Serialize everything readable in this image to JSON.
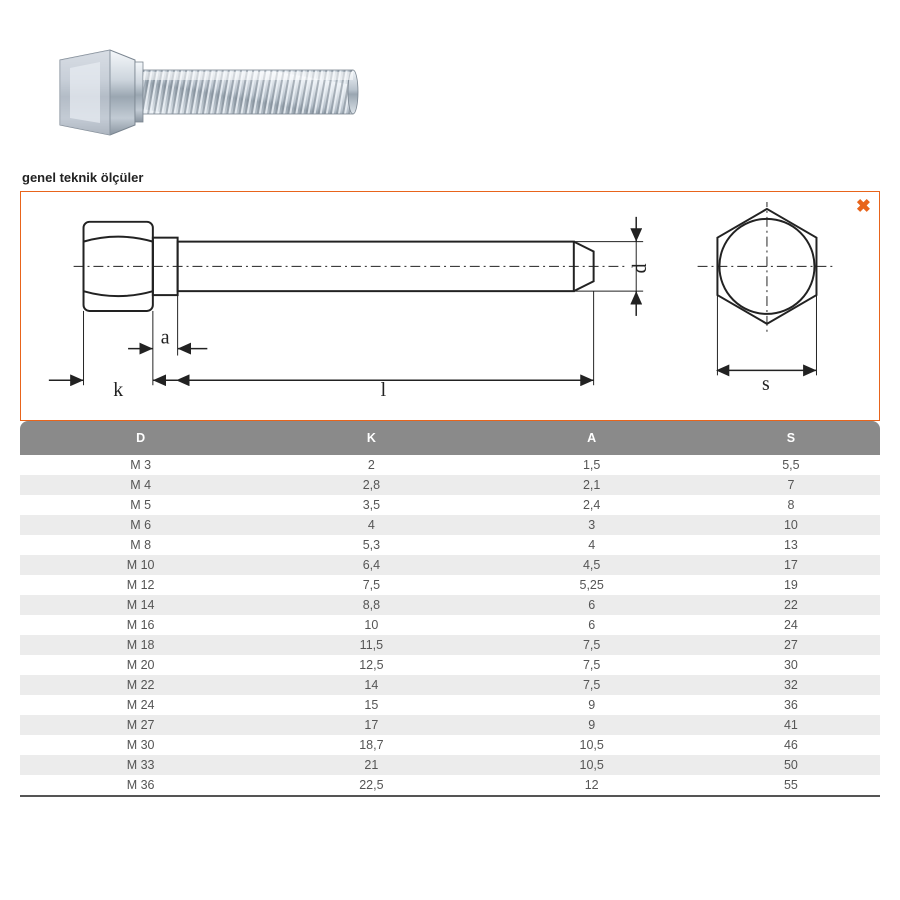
{
  "title": "genel teknik ölçüler",
  "close_symbol": "✖",
  "diagram": {
    "labels": {
      "a": "a",
      "k": "k",
      "l": "l",
      "s": "s",
      "d": "d"
    },
    "stroke": "#222222",
    "frame_color": "#e8641b"
  },
  "photo": {
    "metal_light": "#e0e5ea",
    "metal_mid": "#aeb8c2",
    "metal_dark": "#7a8590",
    "highlight": "#f5f8fb"
  },
  "table": {
    "header_bg": "#8a8a8a",
    "header_fg": "#ffffff",
    "row_odd_bg": "#ffffff",
    "row_even_bg": "#ececec",
    "text_color": "#555555",
    "columns": [
      "D",
      "K",
      "A",
      "S"
    ],
    "rows": [
      [
        "M 3",
        "2",
        "1,5",
        "5,5"
      ],
      [
        "M 4",
        "2,8",
        "2,1",
        "7"
      ],
      [
        "M 5",
        "3,5",
        "2,4",
        "8"
      ],
      [
        "M 6",
        "4",
        "3",
        "10"
      ],
      [
        "M 8",
        "5,3",
        "4",
        "13"
      ],
      [
        "M 10",
        "6,4",
        "4,5",
        "17"
      ],
      [
        "M 12",
        "7,5",
        "5,25",
        "19"
      ],
      [
        "M 14",
        "8,8",
        "6",
        "22"
      ],
      [
        "M 16",
        "10",
        "6",
        "24"
      ],
      [
        "M 18",
        "11,5",
        "7,5",
        "27"
      ],
      [
        "M 20",
        "12,5",
        "7,5",
        "30"
      ],
      [
        "M 22",
        "14",
        "7,5",
        "32"
      ],
      [
        "M 24",
        "15",
        "9",
        "36"
      ],
      [
        "M 27",
        "17",
        "9",
        "41"
      ],
      [
        "M 30",
        "18,7",
        "10,5",
        "46"
      ],
      [
        "M 33",
        "21",
        "10,5",
        "50"
      ],
      [
        "M 36",
        "22,5",
        "12",
        "55"
      ]
    ]
  }
}
